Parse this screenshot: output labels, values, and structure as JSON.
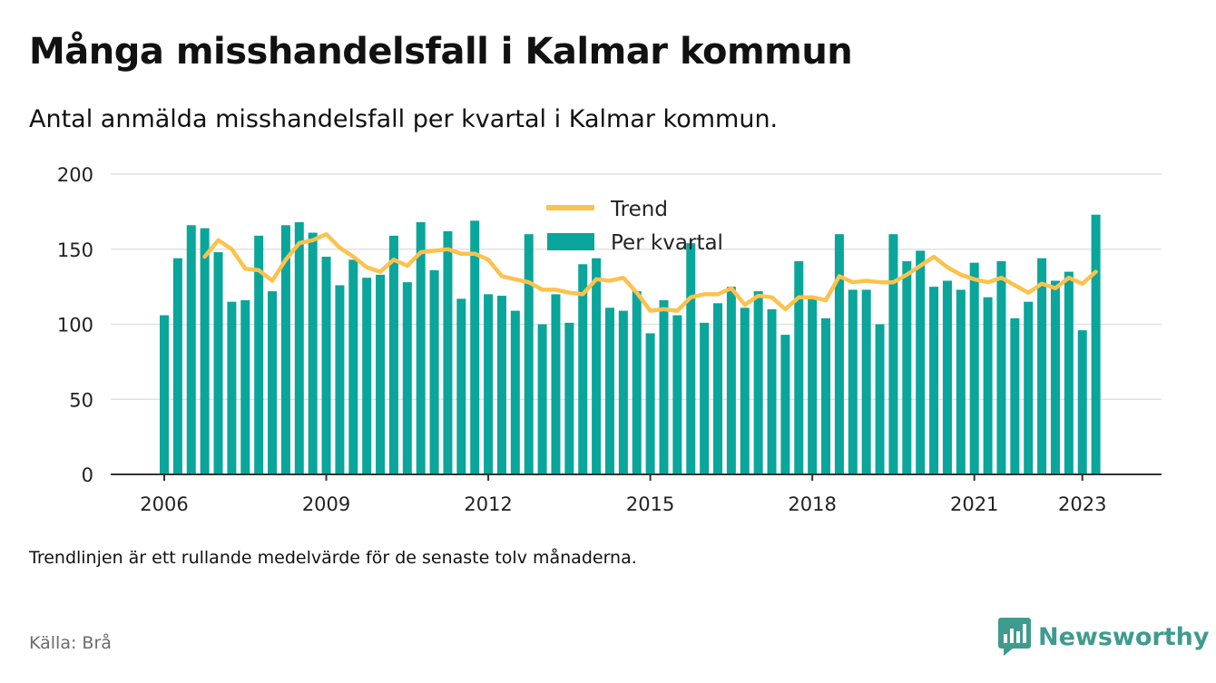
{
  "title": "Många misshandelsfall i Kalmar kommun",
  "subtitle": "Antal anmälda misshandelsfall per kvartal i Kalmar kommun.",
  "note": "Trendlinjen är ett rullande medelvärde för de senaste tolv månaderna.",
  "source": "Källa: Brå",
  "brand": {
    "name": "Newsworthy",
    "icon": "newsworthy-chart-logo-icon"
  },
  "colors": {
    "bars": "#0aa59b",
    "trend": "#fcc24d",
    "grid": "#dddddd",
    "axis": "#333333",
    "text": "#222222",
    "brand": "#3f9b8e"
  },
  "chart_data": {
    "type": "bar",
    "ylim": [
      0,
      200
    ],
    "yticks": [
      0,
      50,
      100,
      150,
      200
    ],
    "xticks": [
      "2006",
      "2009",
      "2012",
      "2015",
      "2018",
      "2021",
      "2023"
    ],
    "grid": true,
    "legend_position": "top-center",
    "legend": [
      "Trend",
      "Per kvartal"
    ],
    "x": [
      "2006-Q1",
      "2006-Q2",
      "2006-Q3",
      "2006-Q4",
      "2007-Q1",
      "2007-Q2",
      "2007-Q3",
      "2007-Q4",
      "2008-Q1",
      "2008-Q2",
      "2008-Q3",
      "2008-Q4",
      "2009-Q1",
      "2009-Q2",
      "2009-Q3",
      "2009-Q4",
      "2010-Q1",
      "2010-Q2",
      "2010-Q3",
      "2010-Q4",
      "2011-Q1",
      "2011-Q2",
      "2011-Q3",
      "2011-Q4",
      "2012-Q1",
      "2012-Q2",
      "2012-Q3",
      "2012-Q4",
      "2013-Q1",
      "2013-Q2",
      "2013-Q3",
      "2013-Q4",
      "2014-Q1",
      "2014-Q2",
      "2014-Q3",
      "2014-Q4",
      "2015-Q1",
      "2015-Q2",
      "2015-Q3",
      "2015-Q4",
      "2016-Q1",
      "2016-Q2",
      "2016-Q3",
      "2016-Q4",
      "2017-Q1",
      "2017-Q2",
      "2017-Q3",
      "2017-Q4",
      "2018-Q1",
      "2018-Q2",
      "2018-Q3",
      "2018-Q4",
      "2019-Q1",
      "2019-Q2",
      "2019-Q3",
      "2019-Q4",
      "2020-Q1",
      "2020-Q2",
      "2020-Q3",
      "2020-Q4",
      "2021-Q1",
      "2021-Q2",
      "2021-Q3",
      "2021-Q4",
      "2022-Q1",
      "2022-Q2",
      "2022-Q3",
      "2022-Q4",
      "2023-Q1",
      "2023-Q2"
    ],
    "series": [
      {
        "name": "Per kvartal",
        "type": "bar",
        "values": [
          106,
          144,
          166,
          164,
          148,
          115,
          116,
          159,
          122,
          166,
          168,
          161,
          145,
          126,
          143,
          131,
          133,
          159,
          128,
          168,
          136,
          162,
          117,
          169,
          120,
          119,
          109,
          160,
          100,
          120,
          101,
          140,
          144,
          111,
          109,
          122,
          94,
          116,
          106,
          154,
          101,
          114,
          125,
          111,
          122,
          110,
          93,
          142,
          118,
          104,
          160,
          123,
          123,
          100,
          160,
          142,
          149,
          125,
          129,
          123,
          141,
          118,
          142,
          104,
          115,
          144,
          129,
          135,
          96,
          173
        ]
      },
      {
        "name": "Trend",
        "type": "line",
        "values": [
          null,
          null,
          null,
          145,
          156,
          150,
          137,
          136,
          129,
          143,
          154,
          156,
          160,
          151,
          145,
          138,
          135,
          143,
          139,
          148,
          149,
          150,
          147,
          147,
          143,
          132,
          130,
          128,
          123,
          123,
          121,
          120,
          130,
          129,
          131,
          121,
          109,
          110,
          109,
          118,
          120,
          120,
          124,
          113,
          119,
          118,
          110,
          118,
          118,
          116,
          132,
          128,
          129,
          128,
          128,
          133,
          139,
          145,
          138,
          133,
          130,
          128,
          131,
          126,
          121,
          127,
          124,
          131,
          127,
          135
        ]
      }
    ]
  }
}
